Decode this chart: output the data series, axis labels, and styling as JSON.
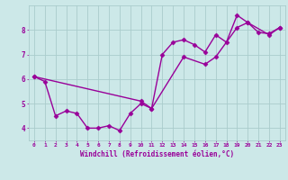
{
  "line1_x": [
    0,
    1,
    2,
    3,
    4,
    5,
    6,
    7,
    8,
    9,
    10,
    11,
    12,
    13,
    14,
    15,
    16,
    17,
    18,
    19,
    20,
    21,
    22,
    23
  ],
  "line1_y": [
    6.1,
    5.9,
    4.5,
    4.7,
    4.6,
    4.0,
    4.0,
    4.1,
    3.9,
    4.6,
    5.0,
    4.8,
    7.0,
    7.5,
    7.6,
    7.4,
    7.1,
    7.8,
    7.5,
    8.6,
    8.3,
    7.9,
    7.85,
    8.1
  ],
  "line2_x": [
    0,
    10,
    11,
    14,
    16,
    17,
    19,
    20,
    22,
    23
  ],
  "line2_y": [
    6.1,
    5.1,
    4.8,
    6.9,
    6.6,
    6.9,
    8.1,
    8.3,
    7.8,
    8.1
  ],
  "line_color": "#990099",
  "bg_color": "#cce8e8",
  "grid_color": "#aacccc",
  "xlabel": "Windchill (Refroidissement éolien,°C)",
  "xlim": [
    -0.5,
    23.5
  ],
  "ylim": [
    3.5,
    9.0
  ],
  "xticks": [
    0,
    1,
    2,
    3,
    4,
    5,
    6,
    7,
    8,
    9,
    10,
    11,
    12,
    13,
    14,
    15,
    16,
    17,
    18,
    19,
    20,
    21,
    22,
    23
  ],
  "yticks": [
    4,
    5,
    6,
    7,
    8
  ],
  "marker": "D",
  "markersize": 2.5,
  "linewidth": 1.0
}
